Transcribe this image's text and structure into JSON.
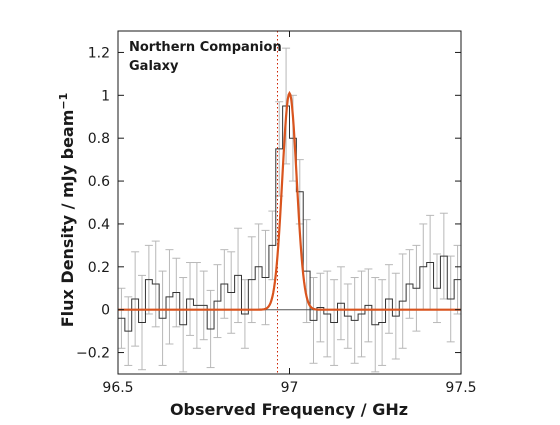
{
  "chart_data": {
    "type": "line",
    "title": "",
    "annotation_lines": [
      "Northern Companion",
      "Galaxy"
    ],
    "xlabel": "Observed Frequency / GHz",
    "ylabel_main": "Flux Density / mJy beam",
    "ylabel_sup": "−1",
    "xlim": [
      96.5,
      97.5
    ],
    "ylim": [
      -0.3,
      1.3
    ],
    "xticks": [
      96.5,
      97,
      97.5
    ],
    "xtick_labels": [
      "96.5",
      "97",
      "97.5"
    ],
    "yticks": [
      -0.2,
      0,
      0.2,
      0.4,
      0.6,
      0.8,
      1,
      1.2
    ],
    "ytick_labels": [
      "−0.2",
      "0",
      "0.2",
      "0.4",
      "0.6",
      "0.8",
      "1",
      "1.2"
    ],
    "grid": false,
    "legend": "none",
    "marker_line_x": 96.965,
    "series": [
      {
        "kind": "step",
        "color": "#333333",
        "bin_width": 0.02,
        "x": [
          96.51,
          96.53,
          96.55,
          96.57,
          96.59,
          96.61,
          96.63,
          96.65,
          96.67,
          96.69,
          96.71,
          96.73,
          96.75,
          96.77,
          96.79,
          96.81,
          96.83,
          96.85,
          96.87,
          96.89,
          96.91,
          96.93,
          96.95,
          96.97,
          96.99,
          97.01,
          97.03,
          97.05,
          97.07,
          97.09,
          97.11,
          97.13,
          97.15,
          97.17,
          97.19,
          97.21,
          97.23,
          97.25,
          97.27,
          97.29,
          97.31,
          97.33,
          97.35,
          97.37,
          97.39,
          97.41,
          97.43,
          97.45,
          97.47,
          97.49
        ],
        "y": [
          -0.04,
          -0.1,
          0.05,
          -0.06,
          0.14,
          0.12,
          -0.04,
          0.06,
          0.08,
          -0.07,
          0.05,
          0.02,
          0.02,
          -0.09,
          0.04,
          0.12,
          0.08,
          0.16,
          -0.02,
          0.14,
          0.2,
          0.15,
          0.3,
          0.75,
          0.95,
          0.8,
          0.55,
          0.18,
          -0.05,
          0.01,
          -0.02,
          -0.06,
          0.03,
          -0.03,
          -0.05,
          -0.02,
          0.02,
          -0.07,
          -0.06,
          0.05,
          -0.03,
          0.04,
          0.12,
          0.1,
          0.2,
          0.22,
          0.1,
          0.25,
          0.05,
          0.14
        ],
        "err": [
          0.14,
          0.16,
          0.22,
          0.22,
          0.16,
          0.2,
          0.22,
          0.22,
          0.16,
          0.22,
          0.17,
          0.2,
          0.16,
          0.18,
          0.17,
          0.16,
          0.19,
          0.22,
          0.16,
          0.2,
          0.2,
          0.22,
          0.16,
          0.22,
          0.27,
          0.2,
          0.15,
          0.24,
          0.2,
          0.16,
          0.2,
          0.2,
          0.17,
          0.15,
          0.2,
          0.2,
          0.17,
          0.22,
          0.2,
          0.16,
          0.2,
          0.22,
          0.16,
          0.2,
          0.2,
          0.22,
          0.16,
          0.2,
          0.2,
          0.16
        ]
      },
      {
        "kind": "gaussian-fit",
        "color": "#d9541e",
        "amplitude": 1.01,
        "center": 97.0,
        "sigma": 0.021,
        "baseline": 0
      }
    ]
  }
}
